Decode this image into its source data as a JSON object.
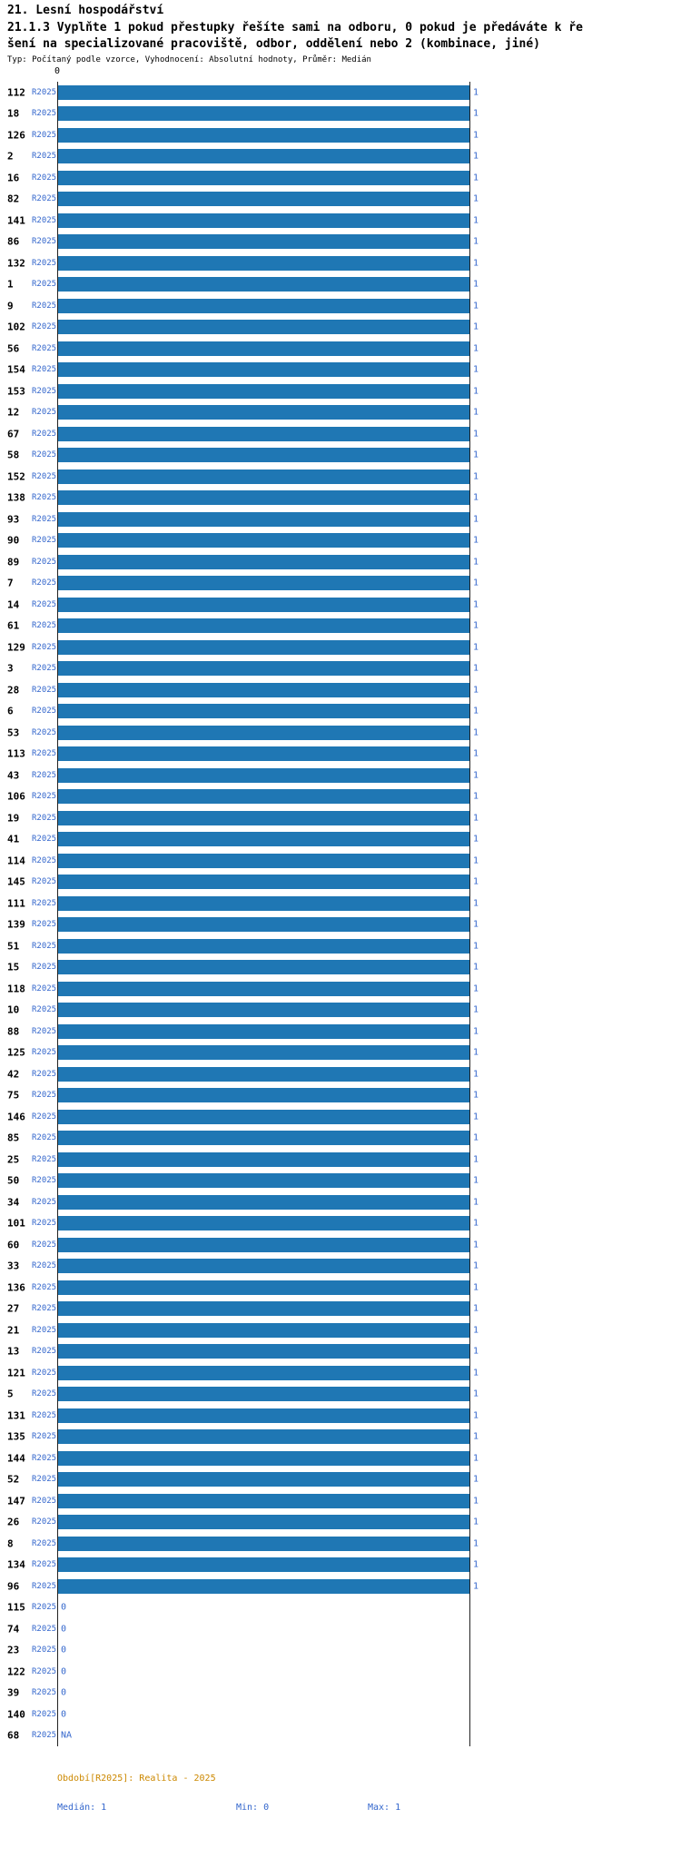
{
  "header": {
    "title": "21. Lesní hospodářství",
    "subtitle_line1": "21.1.3 Vyplňte 1 pokud přestupky řešíte sami na odboru, 0 pokud je předáváte k ře",
    "subtitle_line2": "šení na specializované pracoviště, odbor, oddělení nebo 2 (kombinace, jiné)",
    "meta": "Typ: Počítaný podle vzorce, Vyhodnocení: Absolutní hodnoty, Průměr: Medián"
  },
  "chart_data": {
    "type": "bar",
    "orientation": "horizontal",
    "title": "21.1.3 Vyplňte 1 pokud přestupky řešíte sami na odboru, 0 pokud je předáváte k řešení na specializované pracoviště, odbor, oddělení nebo 2 (kombinace, jiné)",
    "xlim": [
      0,
      1
    ],
    "axis_top_tick": "0",
    "series_label": "R2025",
    "legend_position": "bottom",
    "grid": false,
    "rows_format": [
      "label",
      "value"
    ],
    "rows": [
      [
        "112",
        1
      ],
      [
        "18",
        1
      ],
      [
        "126",
        1
      ],
      [
        "2",
        1
      ],
      [
        "16",
        1
      ],
      [
        "82",
        1
      ],
      [
        "141",
        1
      ],
      [
        "86",
        1
      ],
      [
        "132",
        1
      ],
      [
        "1",
        1
      ],
      [
        "9",
        1
      ],
      [
        "102",
        1
      ],
      [
        "56",
        1
      ],
      [
        "154",
        1
      ],
      [
        "153",
        1
      ],
      [
        "12",
        1
      ],
      [
        "67",
        1
      ],
      [
        "58",
        1
      ],
      [
        "152",
        1
      ],
      [
        "138",
        1
      ],
      [
        "93",
        1
      ],
      [
        "90",
        1
      ],
      [
        "89",
        1
      ],
      [
        "7",
        1
      ],
      [
        "14",
        1
      ],
      [
        "61",
        1
      ],
      [
        "129",
        1
      ],
      [
        "3",
        1
      ],
      [
        "28",
        1
      ],
      [
        "6",
        1
      ],
      [
        "53",
        1
      ],
      [
        "113",
        1
      ],
      [
        "43",
        1
      ],
      [
        "106",
        1
      ],
      [
        "19",
        1
      ],
      [
        "41",
        1
      ],
      [
        "114",
        1
      ],
      [
        "145",
        1
      ],
      [
        "111",
        1
      ],
      [
        "139",
        1
      ],
      [
        "51",
        1
      ],
      [
        "15",
        1
      ],
      [
        "118",
        1
      ],
      [
        "10",
        1
      ],
      [
        "88",
        1
      ],
      [
        "125",
        1
      ],
      [
        "42",
        1
      ],
      [
        "75",
        1
      ],
      [
        "146",
        1
      ],
      [
        "85",
        1
      ],
      [
        "25",
        1
      ],
      [
        "50",
        1
      ],
      [
        "34",
        1
      ],
      [
        "101",
        1
      ],
      [
        "60",
        1
      ],
      [
        "33",
        1
      ],
      [
        "136",
        1
      ],
      [
        "27",
        1
      ],
      [
        "21",
        1
      ],
      [
        "13",
        1
      ],
      [
        "121",
        1
      ],
      [
        "5",
        1
      ],
      [
        "131",
        1
      ],
      [
        "135",
        1
      ],
      [
        "144",
        1
      ],
      [
        "52",
        1
      ],
      [
        "147",
        1
      ],
      [
        "26",
        1
      ],
      [
        "8",
        1
      ],
      [
        "134",
        1
      ],
      [
        "96",
        1
      ],
      [
        "115",
        0
      ],
      [
        "74",
        0
      ],
      [
        "23",
        0
      ],
      [
        "122",
        0
      ],
      [
        "39",
        0
      ],
      [
        "140",
        0
      ],
      [
        "68",
        "NA"
      ]
    ],
    "stats": {
      "median": 1,
      "min": 0,
      "max": 1
    },
    "footer": {
      "period": "Období[R2025]: Realita - 2025",
      "median": "Medián: 1",
      "min": "Min: 0",
      "max": "Max: 1"
    },
    "colors": {
      "bar": "#1f77b4",
      "value_label": "#3366cc",
      "legend_period": "#cc8800"
    }
  }
}
